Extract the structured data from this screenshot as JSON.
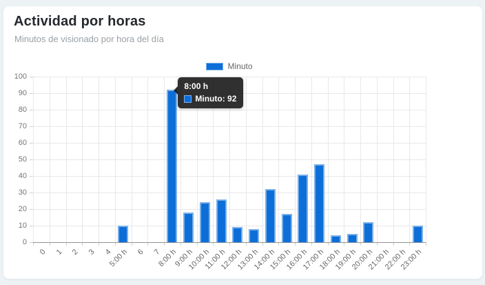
{
  "header": {
    "title": "Actividad por horas",
    "subtitle": "Minutos de visionado por hora del día"
  },
  "legend": {
    "label": "Minuto"
  },
  "tooltip": {
    "title": "8:00 h",
    "label": "Minuto: 92"
  },
  "colors": {
    "bar": "#0d6ed8",
    "bar_border": "#7db0e9",
    "page_background": "#edf2f5",
    "card_background": "#ffffff",
    "tooltip_background": "rgba(12,12,12,0.85)"
  },
  "chart_data": {
    "type": "bar",
    "title": "Actividad por horas",
    "subtitle": "Minutos de visionado por hora del día",
    "categories": [
      "0",
      "1",
      "2",
      "3",
      "4",
      "5:00 h",
      "6",
      "7",
      "8:00 h",
      "9:00 h",
      "10:00 h",
      "11:00 h",
      "12:00 h",
      "13:00 h",
      "14:00 h",
      "15:00 h",
      "16:00 h",
      "17:00 h",
      "18:00 h",
      "19:00 h",
      "20:00 h",
      "21:00 h",
      "22:00 h",
      "23:00 h"
    ],
    "series": [
      {
        "name": "Minuto",
        "values": [
          0,
          0,
          0,
          0,
          0,
          10,
          0,
          0,
          92,
          18,
          24,
          26,
          9,
          8,
          32,
          17,
          41,
          47,
          4,
          5,
          12,
          0,
          0,
          10
        ]
      }
    ],
    "ylabel": "",
    "xlabel": "",
    "ylim": [
      0,
      100
    ],
    "ytick_step": 10,
    "grid": true,
    "legend_position": "top-center",
    "x_tick_rotation": -45,
    "tooltip": {
      "index": 8,
      "title": "8:00 h",
      "label": "Minuto: 92"
    }
  }
}
